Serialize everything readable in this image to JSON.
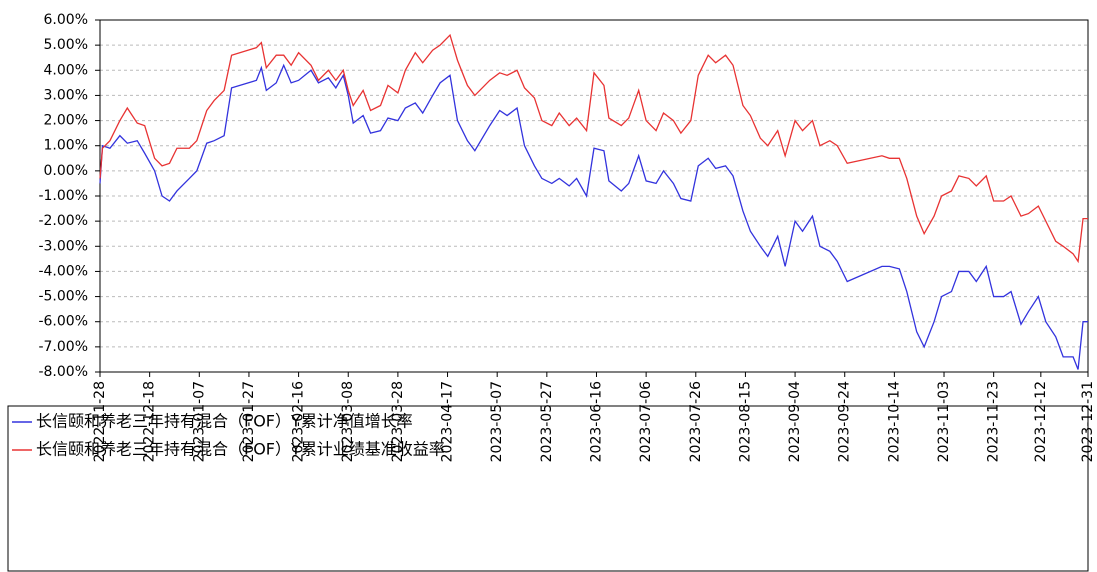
{
  "chart_data": {
    "type": "line",
    "x": [
      "2022-11-28",
      "2022-11-29",
      "2022-12-02",
      "2022-12-06",
      "2022-12-09",
      "2022-12-13",
      "2022-12-16",
      "2022-12-20",
      "2022-12-23",
      "2022-12-26",
      "2022-12-29",
      "2023-01-03",
      "2023-01-06",
      "2023-01-10",
      "2023-01-13",
      "2023-01-17",
      "2023-01-20",
      "2023-01-30",
      "2023-02-01",
      "2023-02-03",
      "2023-02-07",
      "2023-02-10",
      "2023-02-13",
      "2023-02-16",
      "2023-02-21",
      "2023-02-24",
      "2023-02-28",
      "2023-03-03",
      "2023-03-06",
      "2023-03-08",
      "2023-03-10",
      "2023-03-14",
      "2023-03-17",
      "2023-03-21",
      "2023-03-24",
      "2023-03-28",
      "2023-03-31",
      "2023-04-04",
      "2023-04-07",
      "2023-04-11",
      "2023-04-14",
      "2023-04-18",
      "2023-04-21",
      "2023-04-25",
      "2023-04-28",
      "2023-05-04",
      "2023-05-08",
      "2023-05-11",
      "2023-05-15",
      "2023-05-18",
      "2023-05-22",
      "2023-05-25",
      "2023-05-29",
      "2023-06-01",
      "2023-06-05",
      "2023-06-08",
      "2023-06-12",
      "2023-06-15",
      "2023-06-19",
      "2023-06-21",
      "2023-06-26",
      "2023-06-29",
      "2023-07-03",
      "2023-07-06",
      "2023-07-10",
      "2023-07-13",
      "2023-07-17",
      "2023-07-20",
      "2023-07-24",
      "2023-07-27",
      "2023-07-31",
      "2023-08-03",
      "2023-08-07",
      "2023-08-10",
      "2023-08-14",
      "2023-08-17",
      "2023-08-21",
      "2023-08-24",
      "2023-08-28",
      "2023-08-31",
      "2023-09-04",
      "2023-09-07",
      "2023-09-11",
      "2023-09-14",
      "2023-09-18",
      "2023-09-21",
      "2023-09-25",
      "2023-10-09",
      "2023-10-12",
      "2023-10-16",
      "2023-10-19",
      "2023-10-23",
      "2023-10-26",
      "2023-10-30",
      "2023-11-02",
      "2023-11-06",
      "2023-11-09",
      "2023-11-13",
      "2023-11-16",
      "2023-11-20",
      "2023-11-23",
      "2023-11-27",
      "2023-11-30",
      "2023-12-04",
      "2023-12-07",
      "2023-12-11",
      "2023-12-14",
      "2023-12-18",
      "2023-12-21",
      "2023-12-25",
      "2023-12-27",
      "2023-12-29",
      "2023-12-31"
    ],
    "series": [
      {
        "name": "长信颐和养老三年持有混合（FOF）Y累计净值增长率",
        "color": "#3333dd",
        "values": [
          -0.5,
          1.0,
          0.9,
          1.4,
          1.1,
          1.2,
          0.7,
          0.0,
          -1.0,
          -1.2,
          -0.8,
          -0.3,
          0.0,
          1.1,
          1.2,
          1.4,
          3.3,
          3.6,
          4.1,
          3.2,
          3.5,
          4.2,
          3.5,
          3.6,
          4.0,
          3.5,
          3.7,
          3.3,
          3.8,
          3.0,
          1.9,
          2.2,
          1.5,
          1.6,
          2.1,
          2.0,
          2.5,
          2.7,
          2.3,
          3.0,
          3.5,
          3.8,
          2.0,
          1.2,
          0.8,
          1.8,
          2.4,
          2.2,
          2.5,
          1.0,
          0.2,
          -0.3,
          -0.5,
          -0.3,
          -0.6,
          -0.3,
          -1.0,
          0.9,
          0.8,
          -0.4,
          -0.8,
          -0.5,
          0.6,
          -0.4,
          -0.5,
          0.0,
          -0.5,
          -1.1,
          -1.2,
          0.2,
          0.5,
          0.1,
          0.2,
          -0.2,
          -1.6,
          -2.4,
          -3.0,
          -3.4,
          -2.6,
          -3.8,
          -2.0,
          -2.4,
          -1.8,
          -3.0,
          -3.2,
          -3.6,
          -4.4,
          -3.8,
          -3.8,
          -3.9,
          -4.8,
          -6.4,
          -7.0,
          -6.0,
          -5.0,
          -4.8,
          -4.0,
          -4.0,
          -4.4,
          -3.8,
          -5.0,
          -5.0,
          -4.8,
          -6.1,
          -5.6,
          -5.0,
          -6.0,
          -6.6,
          -7.4,
          -7.4,
          -7.9,
          -6.0,
          -6.0
        ]
      },
      {
        "name": "长信颐和养老三年持有混合（FOF）Y累计业绩基准收益率",
        "color": "#e83333",
        "values": [
          -0.3,
          0.9,
          1.2,
          2.0,
          2.5,
          1.9,
          1.8,
          0.5,
          0.2,
          0.3,
          0.9,
          0.9,
          1.2,
          2.4,
          2.8,
          3.2,
          4.6,
          4.9,
          5.1,
          4.1,
          4.6,
          4.6,
          4.2,
          4.7,
          4.2,
          3.6,
          4.0,
          3.6,
          4.0,
          3.2,
          2.6,
          3.2,
          2.4,
          2.6,
          3.4,
          3.1,
          4.0,
          4.7,
          4.3,
          4.8,
          5.0,
          5.4,
          4.4,
          3.4,
          3.0,
          3.6,
          3.9,
          3.8,
          4.0,
          3.3,
          2.9,
          2.0,
          1.8,
          2.3,
          1.8,
          2.1,
          1.6,
          3.9,
          3.4,
          2.1,
          1.8,
          2.1,
          3.2,
          2.0,
          1.6,
          2.3,
          2.0,
          1.5,
          2.0,
          3.8,
          4.6,
          4.3,
          4.6,
          4.2,
          2.6,
          2.2,
          1.3,
          1.0,
          1.6,
          0.6,
          2.0,
          1.6,
          2.0,
          1.0,
          1.2,
          1.0,
          0.3,
          0.6,
          0.5,
          0.5,
          -0.3,
          -1.8,
          -2.5,
          -1.8,
          -1.0,
          -0.8,
          -0.2,
          -0.3,
          -0.6,
          -0.2,
          -1.2,
          -1.2,
          -1.0,
          -1.8,
          -1.7,
          -1.4,
          -2.0,
          -2.8,
          -3.0,
          -3.3,
          -3.6,
          -1.9,
          -1.9
        ]
      }
    ],
    "xlim": [
      "2022-11-28",
      "2023-12-31"
    ],
    "xticks": [
      "2022-11-28",
      "2022-12-18",
      "2023-01-07",
      "2023-01-27",
      "2023-02-16",
      "2023-03-08",
      "2023-03-28",
      "2023-04-17",
      "2023-05-07",
      "2023-05-27",
      "2023-06-16",
      "2023-07-06",
      "2023-07-26",
      "2023-08-15",
      "2023-09-04",
      "2023-09-24",
      "2023-10-14",
      "2023-11-03",
      "2023-11-23",
      "2023-12-12",
      "2023-12-31"
    ],
    "ylim": [
      -8,
      6
    ],
    "yticks": [
      {
        "value": -8,
        "label": "-8.00%"
      },
      {
        "value": -7,
        "label": "-7.00%"
      },
      {
        "value": -6,
        "label": "-6.00%"
      },
      {
        "value": -5,
        "label": "-5.00%"
      },
      {
        "value": -4,
        "label": "-4.00%"
      },
      {
        "value": -3,
        "label": "-3.00%"
      },
      {
        "value": -2,
        "label": "-2.00%"
      },
      {
        "value": -1,
        "label": "-1.00%"
      },
      {
        "value": 0,
        "label": "0.00%"
      },
      {
        "value": 1,
        "label": "1.00%"
      },
      {
        "value": 2,
        "label": "2.00%"
      },
      {
        "value": 3,
        "label": "3.00%"
      },
      {
        "value": 4,
        "label": "4.00%"
      },
      {
        "value": 5,
        "label": "5.00%"
      },
      {
        "value": 6,
        "label": "6.00%"
      }
    ],
    "grid": true
  }
}
